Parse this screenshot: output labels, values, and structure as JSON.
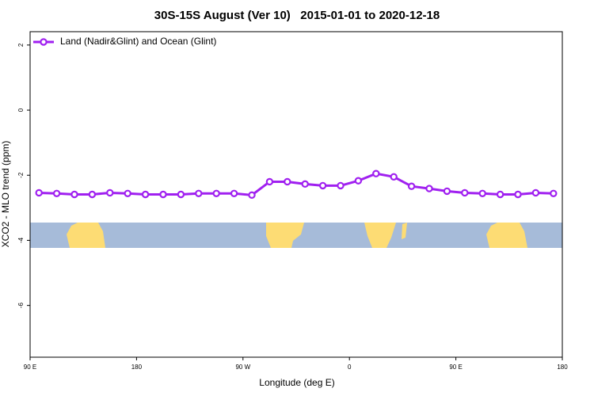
{
  "chart_data": {
    "type": "line",
    "title": "30S-15S August (Ver 10)   2015-01-01 to 2020-12-18",
    "xlabel": "Longitude (deg E)",
    "ylabel": "XCO2 - MLO trend (ppm)",
    "x": [
      97.5,
      112.5,
      127.5,
      142.5,
      157.5,
      172.5,
      187.5,
      202.5,
      217.5,
      232.5,
      247.5,
      262.5,
      277.5,
      292.5,
      307.5,
      322.5,
      337.5,
      352.5,
      367.5,
      382.5,
      397.5,
      412.5,
      427.5,
      442.5,
      457.5,
      472.5,
      487.5,
      502.5,
      517.5,
      532.5
    ],
    "series": [
      {
        "name": "Land (Nadir&Glint) and Ocean (Glint)",
        "color": "#a020f0",
        "values": [
          -2.54,
          -2.56,
          -2.59,
          -2.59,
          -2.54,
          -2.56,
          -2.59,
          -2.59,
          -2.59,
          -2.56,
          -2.56,
          -2.56,
          -2.61,
          -2.2,
          -2.2,
          -2.27,
          -2.32,
          -2.32,
          -2.17,
          -1.95,
          -2.05,
          -2.34,
          -2.41,
          -2.49,
          -2.54,
          -2.56,
          -2.59,
          -2.59,
          -2.54,
          -2.56
        ]
      }
    ],
    "xlim": [
      90,
      540
    ],
    "xticks": [
      {
        "value": 90,
        "label": "90 E"
      },
      180,
      {
        "value": 270,
        "label": "90 W"
      },
      {
        "value": 360,
        "label": "0"
      },
      {
        "value": 450,
        "label": "90 E"
      },
      {
        "value": 540,
        "label": "180"
      }
    ],
    "ylim": [
      -7.59,
      2.41
    ],
    "yticks": [
      2,
      0,
      -2,
      -4,
      -6
    ],
    "legend": "top-left"
  }
}
